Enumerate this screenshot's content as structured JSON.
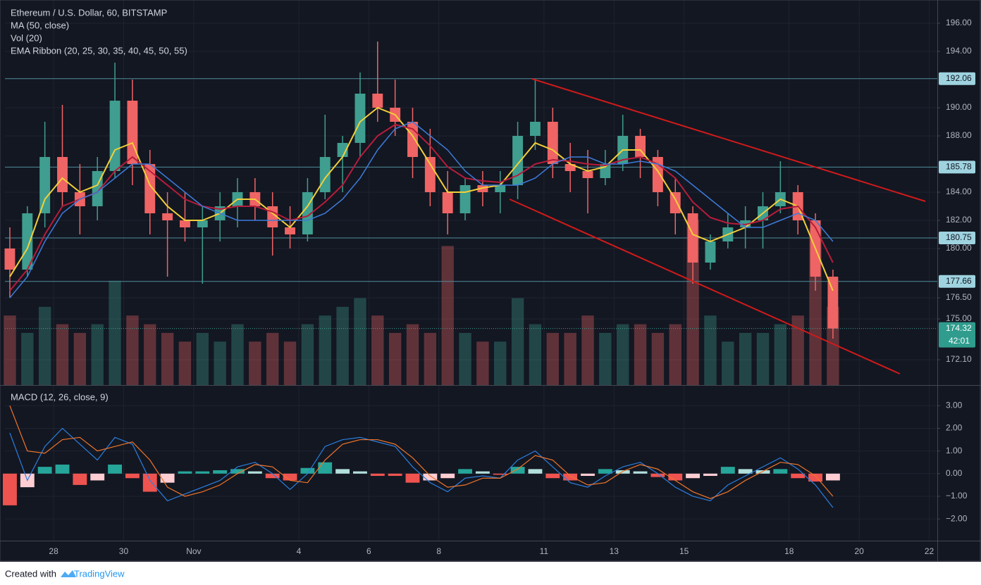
{
  "chart_data": [
    {
      "type": "candlestick",
      "title": "Ethereum / U.S. Dollar, 60, BITSTAMP",
      "x": [
        -1.25,
        -0.75,
        -0.25,
        0.25,
        0.75,
        1.25,
        1.75,
        2.25,
        2.75,
        3.25,
        3.75,
        4.25,
        4.75,
        5.25,
        5.75,
        6.25,
        6.75,
        7.25,
        7.75,
        8.25,
        8.75,
        9.25,
        9.75,
        10.25,
        10.75,
        11.25,
        11.75,
        12.25,
        12.75,
        13.25,
        13.75,
        14.25,
        14.75,
        15.25,
        15.75,
        16.25,
        16.75,
        17.25,
        17.75,
        18.25,
        18.75,
        19.25,
        19.75,
        20.25,
        20.75,
        21.25,
        21.75,
        22.25
      ],
      "open": [
        180,
        178.5,
        182.5,
        186.5,
        184,
        183,
        185.5,
        190.5,
        186,
        182.5,
        182,
        181.5,
        182,
        183,
        184,
        183,
        181.5,
        181,
        184,
        186.5,
        187.5,
        191,
        190,
        189,
        186.5,
        184,
        182.5,
        184.5,
        184,
        184.5,
        188,
        189,
        186,
        185.5,
        185,
        186,
        188,
        186.5,
        184,
        182.5,
        179,
        180.5,
        181.5,
        182,
        183,
        184,
        182,
        178
      ],
      "high": [
        181.5,
        183,
        189,
        190.2,
        186,
        186.5,
        193.2,
        192,
        187,
        184,
        184,
        183,
        184,
        185,
        185,
        184,
        183,
        185,
        189.5,
        188,
        192.5,
        194.7,
        192,
        190,
        188.5,
        185.5,
        185,
        185.5,
        185.5,
        189,
        192,
        190,
        187.5,
        187,
        187,
        189.5,
        188.5,
        187,
        185,
        183,
        181,
        182.5,
        183,
        184,
        186.2,
        184.5,
        182.5,
        178.5
      ],
      "low": [
        176.5,
        178,
        181.5,
        183,
        181,
        182,
        185,
        184.5,
        181,
        178,
        180.5,
        177.5,
        180.5,
        181.5,
        182,
        179.5,
        180,
        180.5,
        183.5,
        184,
        186.5,
        189,
        188,
        185,
        183,
        181,
        182,
        183,
        182.5,
        183.5,
        187,
        185,
        184,
        182.5,
        184.5,
        185.5,
        185,
        183,
        181,
        177.5,
        178.5,
        180,
        180,
        180,
        182.5,
        181,
        177,
        173.6
      ],
      "close": [
        178.5,
        182.5,
        186.5,
        184,
        183,
        185.5,
        190.5,
        186,
        182.5,
        182,
        181.5,
        182,
        183,
        184,
        183,
        181.5,
        181,
        184,
        186.5,
        187.5,
        191,
        190,
        189,
        186.5,
        184,
        182.5,
        184.5,
        184,
        184.5,
        188,
        189,
        186,
        185.5,
        185,
        186,
        188,
        186.5,
        184,
        182.5,
        179,
        180.5,
        181.5,
        182,
        183,
        184,
        182,
        178,
        174.32
      ],
      "up_color": "#3f9e8f",
      "down_color": "#ef6464",
      "ma": {
        "name": "MA (50, close)",
        "color": "#3d7bd9",
        "values": [
          176.5,
          178,
          180.5,
          182.5,
          183.5,
          184,
          185,
          186,
          186,
          185,
          184,
          183,
          182.5,
          182,
          182,
          182,
          182,
          182,
          182.5,
          183.5,
          185,
          187,
          188.5,
          189,
          188,
          187,
          185.5,
          184.5,
          184.5,
          184.5,
          185,
          186,
          186.5,
          186.5,
          186,
          186,
          186.2,
          186,
          185.5,
          184.5,
          183.5,
          182.5,
          181.5,
          181.5,
          182,
          182.5,
          182,
          180.5
        ]
      },
      "volume": {
        "name": "Vol (20)",
        "ylim": [
          0,
          100
        ],
        "values": [
          40,
          30,
          45,
          35,
          30,
          35,
          60,
          40,
          35,
          30,
          25,
          30,
          25,
          35,
          25,
          30,
          25,
          35,
          40,
          45,
          50,
          40,
          30,
          35,
          30,
          80,
          30,
          25,
          25,
          50,
          35,
          30,
          30,
          40,
          30,
          35,
          35,
          30,
          35,
          95,
          40,
          25,
          30,
          30,
          35,
          40,
          90,
          45
        ]
      },
      "ema_ribbon": {
        "name": "EMA Ribbon (20, 25, 30, 35, 40, 45, 50, 55)",
        "series": [
          {
            "color": "#f2cf3a",
            "values": [
              178,
              180,
              183.5,
              185,
              184,
              184.5,
              187,
              187.5,
              184.5,
              183,
              182,
              182,
              182.5,
              183.5,
              183.5,
              182.5,
              181.5,
              183,
              185,
              186.5,
              189,
              190,
              189.5,
              188,
              186,
              184,
              184,
              184.3,
              184.5,
              186,
              187.5,
              187,
              186,
              185.5,
              185.8,
              187,
              187,
              185.5,
              183.5,
              181,
              180.5,
              181,
              181.5,
              182.5,
              183.5,
              183,
              180,
              177
            ]
          },
          {
            "color": "#b71c3c",
            "values": [
              177,
              178.5,
              181,
              183,
              183.5,
              184,
              185.5,
              186.5,
              185.5,
              184.5,
              183.5,
              183,
              182.8,
              183,
              183,
              182.6,
              182,
              182.3,
              183.3,
              184.5,
              186.5,
              188,
              188.8,
              188.5,
              187.3,
              185.8,
              185,
              184.8,
              184.7,
              185.2,
              186,
              186.3,
              186.2,
              186,
              185.9,
              186.3,
              186.5,
              186,
              185,
              183.3,
              182.2,
              181.8,
              181.7,
              182,
              182.8,
              183,
              181.5,
              179
            ]
          }
        ]
      },
      "trendlines": [
        {
          "color": "#d01a1a",
          "x": [
            13.66,
            24.89
          ],
          "y": [
            192.05,
            183.35
          ]
        },
        {
          "color": "#d01a1a",
          "x": [
            13.02,
            24.16
          ],
          "y": [
            183.5,
            171.1
          ]
        }
      ],
      "price_lines": [
        192.06,
        185.78,
        180.75,
        177.66
      ],
      "current_price": 174.32,
      "countdown": "42:01",
      "xlim": [
        -1.39,
        25.23
      ],
      "xticks": [
        {
          "value": 0,
          "label": "28"
        },
        {
          "value": 2,
          "label": "30"
        },
        {
          "value": 4,
          "label": "Nov"
        },
        {
          "value": 7,
          "label": "4"
        },
        {
          "value": 9,
          "label": "6"
        },
        {
          "value": 11,
          "label": "8"
        },
        {
          "value": 14,
          "label": "11"
        },
        {
          "value": 16,
          "label": "13"
        },
        {
          "value": 18,
          "label": "15"
        },
        {
          "value": 21,
          "label": "18"
        },
        {
          "value": 23,
          "label": "20"
        },
        {
          "value": 25,
          "label": "22"
        }
      ],
      "ylim": [
        170.3,
        197.65
      ],
      "yticks": [
        {
          "value": 196,
          "label": "196.00"
        },
        {
          "value": 194,
          "label": "194.00"
        },
        {
          "value": 190,
          "label": "190.00"
        },
        {
          "value": 188,
          "label": "188.00"
        },
        {
          "value": 184,
          "label": "184.00"
        },
        {
          "value": 182,
          "label": "182.00"
        },
        {
          "value": 180,
          "label": "180.00"
        },
        {
          "value": 176.5,
          "label": "176.50"
        },
        {
          "value": 175,
          "label": "175.00"
        },
        {
          "value": 172.1,
          "label": "172.10"
        }
      ],
      "grid": true
    },
    {
      "type": "macd",
      "title": "MACD (12, 26, close, 9)",
      "macd": {
        "color": "#2b7fe0",
        "values": [
          1.8,
          -0.3,
          1.2,
          2.0,
          1.3,
          0.6,
          1.6,
          1.3,
          -0.3,
          -1.2,
          -0.9,
          -0.6,
          -0.3,
          0.3,
          0.5,
          0.0,
          -0.7,
          0.0,
          1.2,
          1.5,
          1.6,
          1.4,
          1.2,
          0.3,
          -0.4,
          -0.8,
          -0.2,
          -0.1,
          -0.2,
          0.6,
          1.0,
          0.3,
          -0.4,
          -0.6,
          -0.1,
          0.3,
          0.5,
          0.0,
          -0.6,
          -1.0,
          -1.2,
          -0.5,
          -0.1,
          0.3,
          0.7,
          0.2,
          -0.5,
          -1.5
        ]
      },
      "signal": {
        "color": "#f0752a",
        "values": [
          3.0,
          1.0,
          0.9,
          1.5,
          1.6,
          1.0,
          1.2,
          1.4,
          0.6,
          -0.6,
          -1.0,
          -0.8,
          -0.5,
          0.0,
          0.4,
          0.3,
          -0.3,
          -0.4,
          0.6,
          1.3,
          1.5,
          1.5,
          1.3,
          0.7,
          -0.1,
          -0.6,
          -0.5,
          -0.2,
          -0.2,
          0.2,
          0.8,
          0.6,
          -0.1,
          -0.5,
          -0.4,
          0.1,
          0.4,
          0.2,
          -0.3,
          -0.8,
          -1.1,
          -0.8,
          -0.3,
          0.1,
          0.5,
          0.4,
          -0.1,
          -1.0
        ]
      },
      "histogram": {
        "colors": [
          "#26a69a",
          "#b2dfdb",
          "#ef5350",
          "#ffcdd2"
        ],
        "values": [
          -1.4,
          -0.6,
          0.3,
          0.4,
          -0.5,
          -0.3,
          0.4,
          -0.2,
          -0.8,
          -0.4,
          0.1,
          0.1,
          0.15,
          0.2,
          0.1,
          -0.2,
          -0.3,
          0.25,
          0.5,
          0.2,
          0.1,
          -0.1,
          -0.1,
          -0.4,
          -0.3,
          -0.2,
          0.2,
          0.1,
          -0.05,
          0.3,
          0.2,
          -0.2,
          -0.3,
          -0.1,
          0.2,
          0.15,
          0.1,
          -0.15,
          -0.3,
          -0.2,
          -0.1,
          0.3,
          0.2,
          0.15,
          0.2,
          -0.2,
          -0.35,
          -0.3
        ]
      },
      "ylim": [
        -2.96,
        3.88
      ],
      "yticks": [
        {
          "value": 3,
          "label": "3.00"
        },
        {
          "value": 2,
          "label": "2.00"
        },
        {
          "value": 1,
          "label": "1.00"
        },
        {
          "value": 0,
          "label": "0.00"
        },
        {
          "value": -1,
          "label": "−1.00"
        },
        {
          "value": -2,
          "label": "−2.00"
        }
      ],
      "grid": true
    }
  ],
  "footer": {
    "text": "Created with",
    "brand": "TradingView"
  }
}
